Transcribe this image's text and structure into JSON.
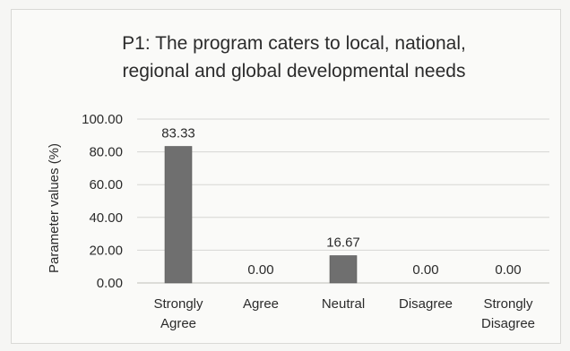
{
  "colors": {
    "bar": "#6f6f6f",
    "grid": "#d6d6d3",
    "axis": "#bdbdb9",
    "text": "#2b2b2b"
  },
  "chart_data": {
    "type": "bar",
    "title_lines": [
      "P1: The program caters to local, national,",
      "regional and global developmental needs"
    ],
    "categories": [
      [
        "Strongly",
        "Agree"
      ],
      [
        "Agree"
      ],
      [
        "Neutral"
      ],
      [
        "Disagree"
      ],
      [
        "Strongly",
        "Disagree"
      ]
    ],
    "values": [
      83.33,
      0.0,
      16.67,
      0.0,
      0.0
    ],
    "data_labels": [
      "83.33",
      "0.00",
      "16.67",
      "0.00",
      "0.00"
    ],
    "xlabel": "",
    "ylabel": "Parameter values (%)",
    "ylim": [
      0,
      100
    ],
    "yticks": [
      0,
      20,
      40,
      60,
      80,
      100
    ],
    "ytick_labels": [
      "0.00",
      "20.00",
      "40.00",
      "60.00",
      "80.00",
      "100.00"
    ],
    "grid": true,
    "legend": "none"
  }
}
